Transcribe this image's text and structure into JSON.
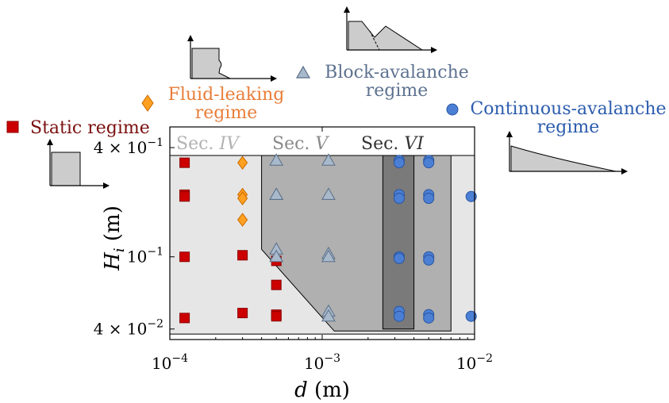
{
  "chart_data": {
    "type": "scatter",
    "x_scale": "log",
    "y_scale": "log",
    "xlabel": "d",
    "xlabel_unit": "(m)",
    "ylabel_var": "H",
    "ylabel_sub": "i",
    "ylabel_unit": "(m)",
    "xlim": [
      0.0001,
      0.01
    ],
    "ylim": [
      0.035,
      0.52
    ],
    "x_ticks": [
      {
        "value": 0.0001,
        "base": "10",
        "exp": "−4"
      },
      {
        "value": 0.001,
        "base": "10",
        "exp": "−3"
      },
      {
        "value": 0.01,
        "base": "10",
        "exp": "−2"
      }
    ],
    "y_ticks": [
      {
        "value": 0.04,
        "coef": "4 × 10",
        "exp": "−2"
      },
      {
        "value": 0.1,
        "coef": "10",
        "exp": "−1"
      },
      {
        "value": 0.4,
        "coef": "4 × 10",
        "exp": "−1"
      }
    ],
    "sections": [
      {
        "name": "Sec.",
        "numeral": "IV",
        "color": "#b3b3b3"
      },
      {
        "name": "Sec.",
        "numeral": "V",
        "color": "#8a8a8a"
      },
      {
        "name": "Sec.",
        "numeral": "VI",
        "color": "#333333"
      }
    ],
    "regions": [
      {
        "id": "IV",
        "fill": "#e6e6e6",
        "polygon": [
          [
            0.0001,
            0.0375
          ],
          [
            0.01,
            0.0375
          ],
          [
            0.01,
            0.5
          ],
          [
            0.0001,
            0.5
          ]
        ]
      },
      {
        "id": "V",
        "fill": "#b0b0b0",
        "polygon": [
          [
            0.0004,
            0.42
          ],
          [
            0.007,
            0.42
          ],
          [
            0.007,
            0.039
          ],
          [
            0.0012,
            0.039
          ],
          [
            0.0004,
            0.11
          ]
        ]
      },
      {
        "id": "VI",
        "fill": "#7a7a7a",
        "polygon": [
          [
            0.0025,
            0.41
          ],
          [
            0.004,
            0.41
          ],
          [
            0.004,
            0.04
          ],
          [
            0.0025,
            0.04
          ]
        ]
      }
    ],
    "series": [
      {
        "name": "Static regime",
        "marker": "square",
        "color": "#cc0000",
        "stroke": "#8b0000",
        "label_color": "#7a1010",
        "points": [
          [
            0.000125,
            0.33
          ],
          [
            0.000125,
            0.22
          ],
          [
            0.000125,
            0.215
          ],
          [
            0.000125,
            0.1
          ],
          [
            0.000125,
            0.046
          ],
          [
            0.0003,
            0.102
          ],
          [
            0.0003,
            0.049
          ],
          [
            0.0005,
            0.095
          ],
          [
            0.0005,
            0.07
          ],
          [
            0.0005,
            0.048
          ],
          [
            0.0005,
            0.047
          ]
        ]
      },
      {
        "name": "Fluid-leaking",
        "name2": "regime",
        "marker": "diamond",
        "color": "#ffa020",
        "stroke": "#cc6a00",
        "label_color": "#e87e3a",
        "points": [
          [
            0.0003,
            0.33
          ],
          [
            0.0003,
            0.22
          ],
          [
            0.0003,
            0.21
          ],
          [
            0.0003,
            0.16
          ]
        ]
      },
      {
        "name": "Block-avalanche",
        "name2": "regime",
        "marker": "triangle",
        "color": "#a9b9cc",
        "stroke": "#5a6e86",
        "label_color": "#5d7290",
        "points": [
          [
            0.0005,
            0.34
          ],
          [
            0.0005,
            0.22
          ],
          [
            0.0005,
            0.22
          ],
          [
            0.0005,
            0.11
          ],
          [
            0.0005,
            0.1
          ],
          [
            0.0011,
            0.34
          ],
          [
            0.0011,
            0.22
          ],
          [
            0.0011,
            0.104
          ],
          [
            0.0011,
            0.1
          ],
          [
            0.0011,
            0.05
          ],
          [
            0.0011,
            0.047
          ]
        ]
      },
      {
        "name": "Continuous-avalanche",
        "name2": "regime",
        "marker": "circle",
        "color": "#4a7fd4",
        "stroke": "#2a55a0",
        "label_color": "#2b5cad",
        "points": [
          [
            0.0032,
            0.34
          ],
          [
            0.0032,
            0.33
          ],
          [
            0.0032,
            0.22
          ],
          [
            0.0032,
            0.21
          ],
          [
            0.0032,
            0.1
          ],
          [
            0.0032,
            0.098
          ],
          [
            0.0032,
            0.05
          ],
          [
            0.0032,
            0.047
          ],
          [
            0.005,
            0.34
          ],
          [
            0.005,
            0.33
          ],
          [
            0.005,
            0.22
          ],
          [
            0.005,
            0.21
          ],
          [
            0.005,
            0.1
          ],
          [
            0.005,
            0.096
          ],
          [
            0.005,
            0.048
          ],
          [
            0.005,
            0.046
          ],
          [
            0.0095,
            0.215
          ],
          [
            0.0095,
            0.047
          ]
        ]
      }
    ]
  }
}
